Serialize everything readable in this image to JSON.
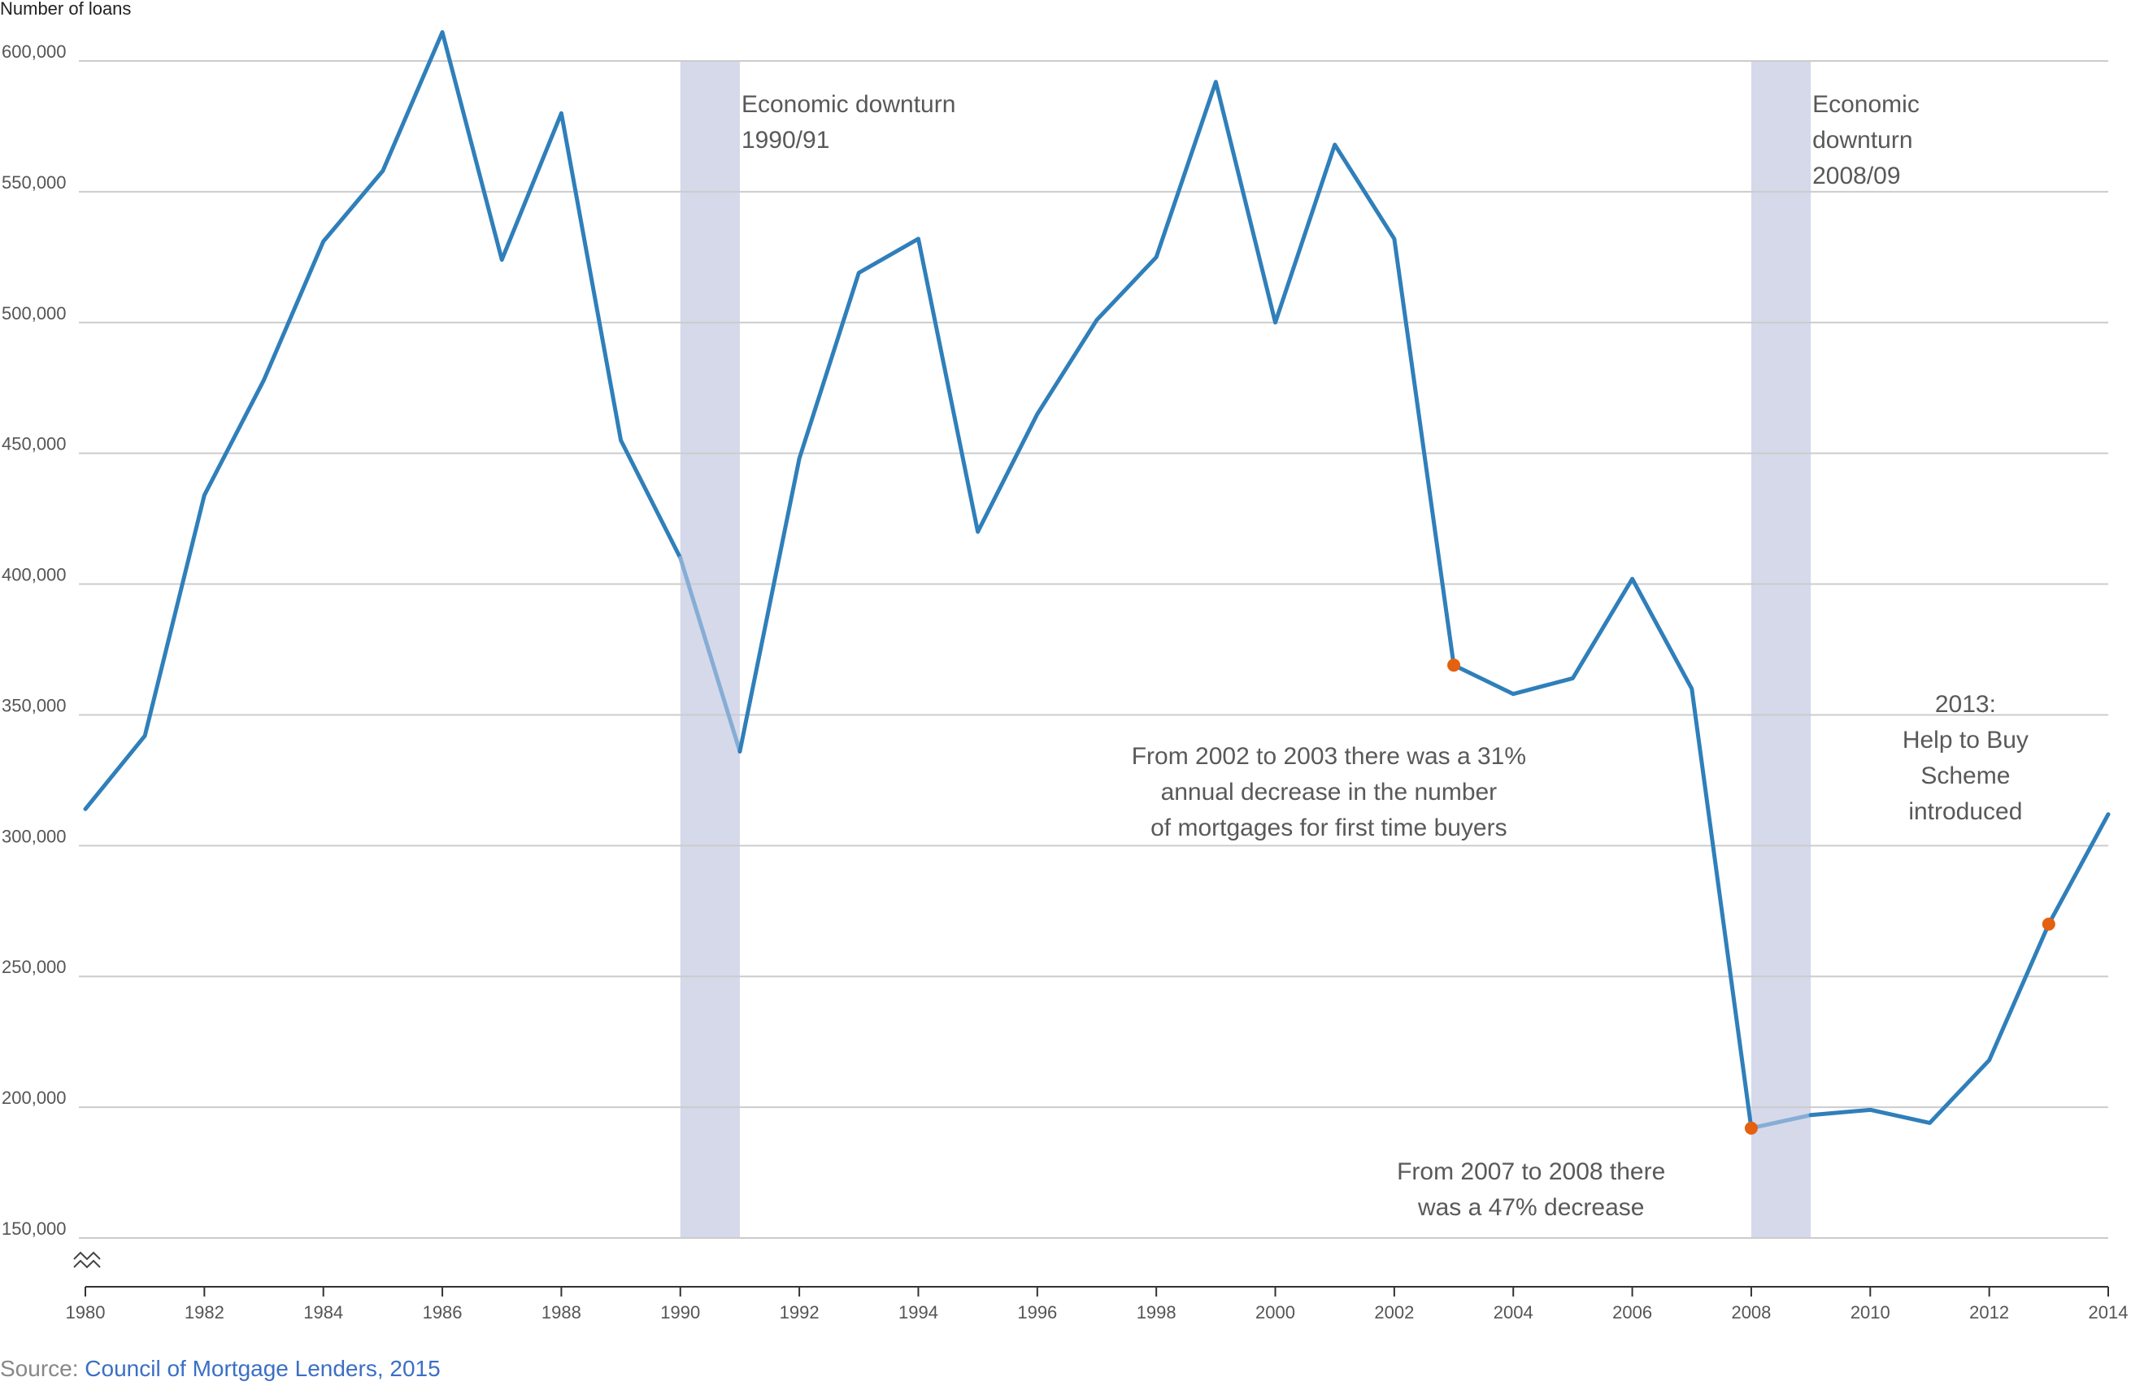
{
  "chart_data": {
    "type": "line",
    "ylabel": "Number of loans",
    "xlabel": "",
    "title": "",
    "x": [
      1980,
      1981,
      1982,
      1983,
      1984,
      1985,
      1986,
      1987,
      1988,
      1989,
      1990,
      1991,
      1992,
      1993,
      1994,
      1995,
      1996,
      1997,
      1998,
      1999,
      2000,
      2001,
      2002,
      2003,
      2004,
      2005,
      2006,
      2007,
      2008,
      2009,
      2010,
      2011,
      2012,
      2013,
      2014
    ],
    "series": [
      {
        "name": "",
        "values": [
          314000,
          342000,
          434000,
          478000,
          531000,
          558000,
          611000,
          524000,
          580000,
          455000,
          410000,
          336000,
          448000,
          519000,
          532000,
          420000,
          465000,
          501000,
          525000,
          592000,
          500000,
          568000,
          532000,
          369000,
          358000,
          364000,
          402000,
          360000,
          192000,
          197000,
          199000,
          194000,
          218000,
          270000,
          312000
        ]
      }
    ],
    "xlim": [
      1980,
      2014
    ],
    "ylim": [
      150000,
      600000
    ],
    "yticks": [
      150000,
      200000,
      250000,
      300000,
      350000,
      400000,
      450000,
      500000,
      550000,
      600000
    ],
    "ytick_labels": [
      "150,000",
      "200,000",
      "250,000",
      "300,000",
      "350,000",
      "400,000",
      "450,000",
      "500,000",
      "550,000",
      "600,000"
    ],
    "xticks": [
      1980,
      1982,
      1984,
      1986,
      1988,
      1990,
      1992,
      1994,
      1996,
      1998,
      2000,
      2002,
      2004,
      2006,
      2008,
      2010,
      2012,
      2014
    ],
    "xtick_labels": [
      "1980",
      "1982",
      "1984",
      "1986",
      "1988",
      "1990",
      "1992",
      "1994",
      "1996",
      "1998",
      "2000",
      "2002",
      "2004",
      "2006",
      "2008",
      "2010",
      "2012",
      "2014"
    ],
    "grid": true,
    "axis_break": true,
    "shaded_periods": [
      {
        "start": 1990,
        "end": 1991,
        "label": [
          "Economic downturn",
          "1990/91"
        ]
      },
      {
        "start": 2008,
        "end": 2009,
        "label": [
          "Economic",
          "downturn",
          "2008/09"
        ]
      }
    ],
    "faded_segments": [
      [
        1990,
        1991
      ],
      [
        2008,
        2009
      ]
    ],
    "highlight_points": [
      2003,
      2008,
      2013
    ],
    "annotations": [
      {
        "text": [
          "From 2002 to 2003 there was a 31%",
          "annual decrease in the number",
          "of mortgages for first time buyers"
        ],
        "x": 2000.9,
        "y": 320000
      },
      {
        "text": [
          "From 2007 to 2008 there",
          "was a 47% decrease"
        ],
        "x": 2004.3,
        "y": 168000
      },
      {
        "text": [
          "2013:",
          "Help to Buy",
          "Scheme",
          "introduced"
        ],
        "x": 2011.6,
        "y": 333000
      }
    ],
    "colors": {
      "line": "#2f7fba",
      "line_faded": "#86add5",
      "highlight": "#e4610f",
      "shade": "#d5d9ea",
      "grid": "#cccccc",
      "axis_text": "#555555",
      "annotation_text": "#595959"
    }
  },
  "source": {
    "prefix": "Source: ",
    "link_text": "Council of Mortgage Lenders, 2015"
  }
}
